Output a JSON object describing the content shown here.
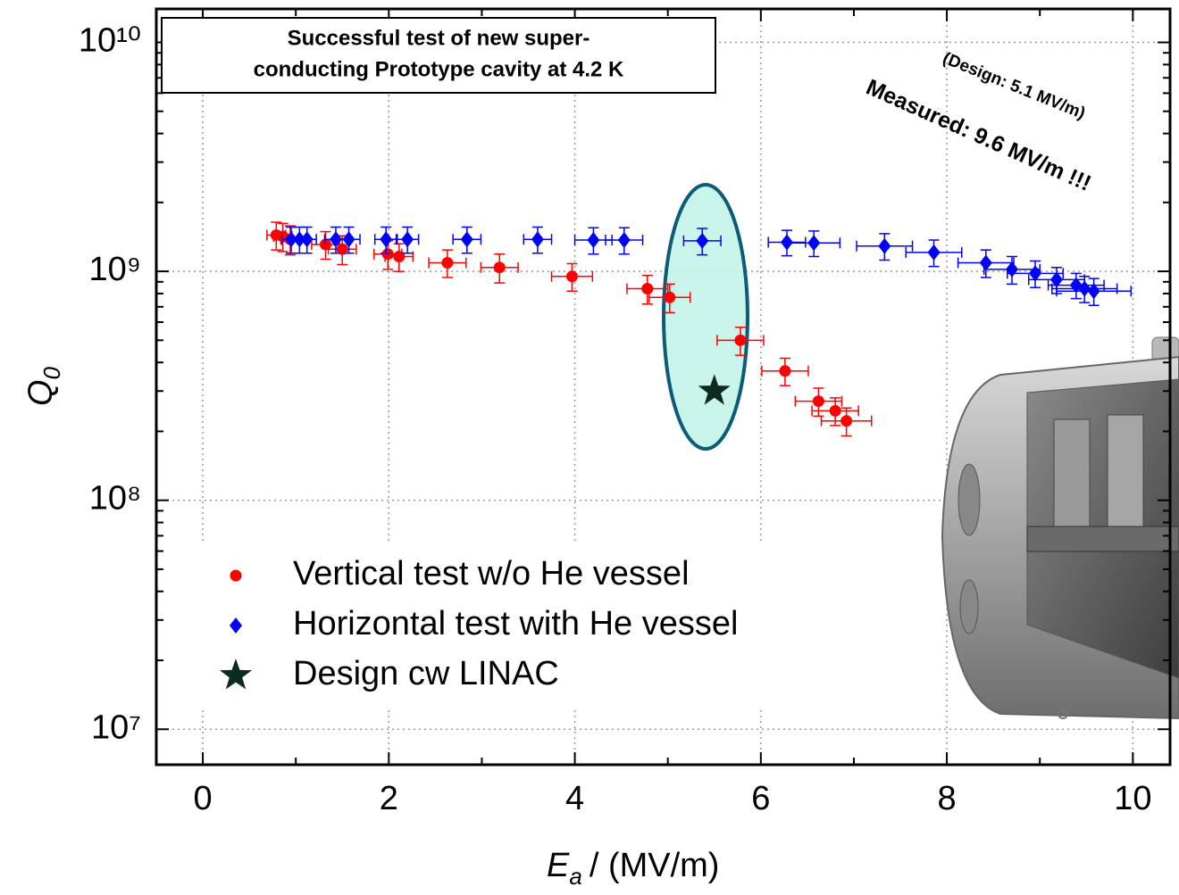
{
  "chart_data": {
    "type": "scatter",
    "yscale": "log",
    "grid": true,
    "legend_position": "lower left",
    "title_box": [
      "Successful test of new super-",
      "conducting Prototype cavity at 4.2 K"
    ],
    "annotations": [
      "(Design: 5.1 MV/m)",
      "Measured: 9.6 MV/m !!!"
    ],
    "x_label": {
      "symbol": "E",
      "subscript": "a",
      "unit": "/ (MV/m)"
    },
    "y_label": {
      "symbol": "Q",
      "subscript": "0"
    },
    "xlim": [
      -0.5,
      10.4
    ],
    "ylim": [
      7000000,
      14000000000
    ],
    "xticks": [
      0,
      2,
      4,
      6,
      8,
      10
    ],
    "xminor_ticks": [
      1,
      3,
      5,
      7,
      9
    ],
    "yticks": [
      {
        "value": 10000000,
        "label": "10⁷"
      },
      {
        "value": 100000000,
        "label": "10⁸"
      },
      {
        "value": 1000000000,
        "label": "10⁹"
      },
      {
        "value": 10000000000,
        "label": "10¹⁰"
      }
    ],
    "yminor_ticks": [
      20000000,
      30000000,
      40000000,
      50000000,
      60000000,
      70000000,
      80000000,
      90000000,
      200000000,
      300000000,
      400000000,
      500000000,
      600000000,
      700000000,
      800000000,
      900000000,
      2000000000,
      3000000000,
      4000000000,
      5000000000,
      6000000000,
      7000000000,
      8000000000,
      9000000000
    ],
    "series": [
      {
        "name": "Vertical test w/o He vessel",
        "color": "#ff0000",
        "marker": "circle",
        "x": [
          0.79,
          0.86,
          0.94,
          1.32,
          1.5,
          1.99,
          2.11,
          2.63,
          3.19,
          3.97,
          4.78,
          5.02,
          5.78,
          6.26,
          6.62,
          6.8,
          6.92
        ],
        "values": [
          1440000000,
          1420000000,
          1380000000,
          1310000000,
          1250000000,
          1190000000,
          1160000000,
          1090000000,
          1040000000,
          950000000,
          840000000,
          770000000,
          500000000,
          367000000,
          271000000,
          246000000,
          222000000
        ],
        "xerr": [
          0.1,
          0.1,
          0.1,
          0.15,
          0.15,
          0.15,
          0.15,
          0.2,
          0.2,
          0.22,
          0.22,
          0.22,
          0.25,
          0.25,
          0.25,
          0.25,
          0.27
        ],
        "yerr": [
          200000000,
          200000000,
          200000000,
          180000000,
          180000000,
          170000000,
          160000000,
          150000000,
          150000000,
          130000000,
          120000000,
          110000000,
          70000000,
          50000000,
          38000000,
          34000000,
          31000000
        ]
      },
      {
        "name": "Horizontal test with He vessel",
        "color": "#0000ff",
        "marker": "diamond",
        "x": [
          0.95,
          1.04,
          1.12,
          1.43,
          1.57,
          1.97,
          2.2,
          2.84,
          3.6,
          4.2,
          4.53,
          5.37,
          6.28,
          6.57,
          7.33,
          7.86,
          8.42,
          8.7,
          8.95,
          9.18,
          9.39,
          9.48,
          9.58
        ],
        "values": [
          1380000000,
          1380000000,
          1380000000,
          1380000000,
          1380000000,
          1380000000,
          1380000000,
          1380000000,
          1380000000,
          1370000000,
          1370000000,
          1360000000,
          1340000000,
          1330000000,
          1290000000,
          1210000000,
          1090000000,
          1020000000,
          980000000,
          920000000,
          870000000,
          840000000,
          820000000
        ],
        "xerr": [
          0.1,
          0.1,
          0.1,
          0.12,
          0.12,
          0.12,
          0.12,
          0.15,
          0.15,
          0.2,
          0.2,
          0.2,
          0.2,
          0.28,
          0.3,
          0.3,
          0.3,
          0.3,
          0.3,
          0.3,
          0.3,
          0.35,
          0.4
        ],
        "yerr": [
          180000000,
          180000000,
          180000000,
          180000000,
          180000000,
          180000000,
          180000000,
          180000000,
          180000000,
          180000000,
          180000000,
          180000000,
          170000000,
          170000000,
          170000000,
          160000000,
          150000000,
          140000000,
          130000000,
          120000000,
          110000000,
          110000000,
          110000000
        ]
      },
      {
        "name": "Design cw LINAC",
        "color": "#0d2b1f",
        "marker": "star",
        "x": [
          5.5
        ],
        "values": [
          300000000
        ]
      }
    ]
  }
}
